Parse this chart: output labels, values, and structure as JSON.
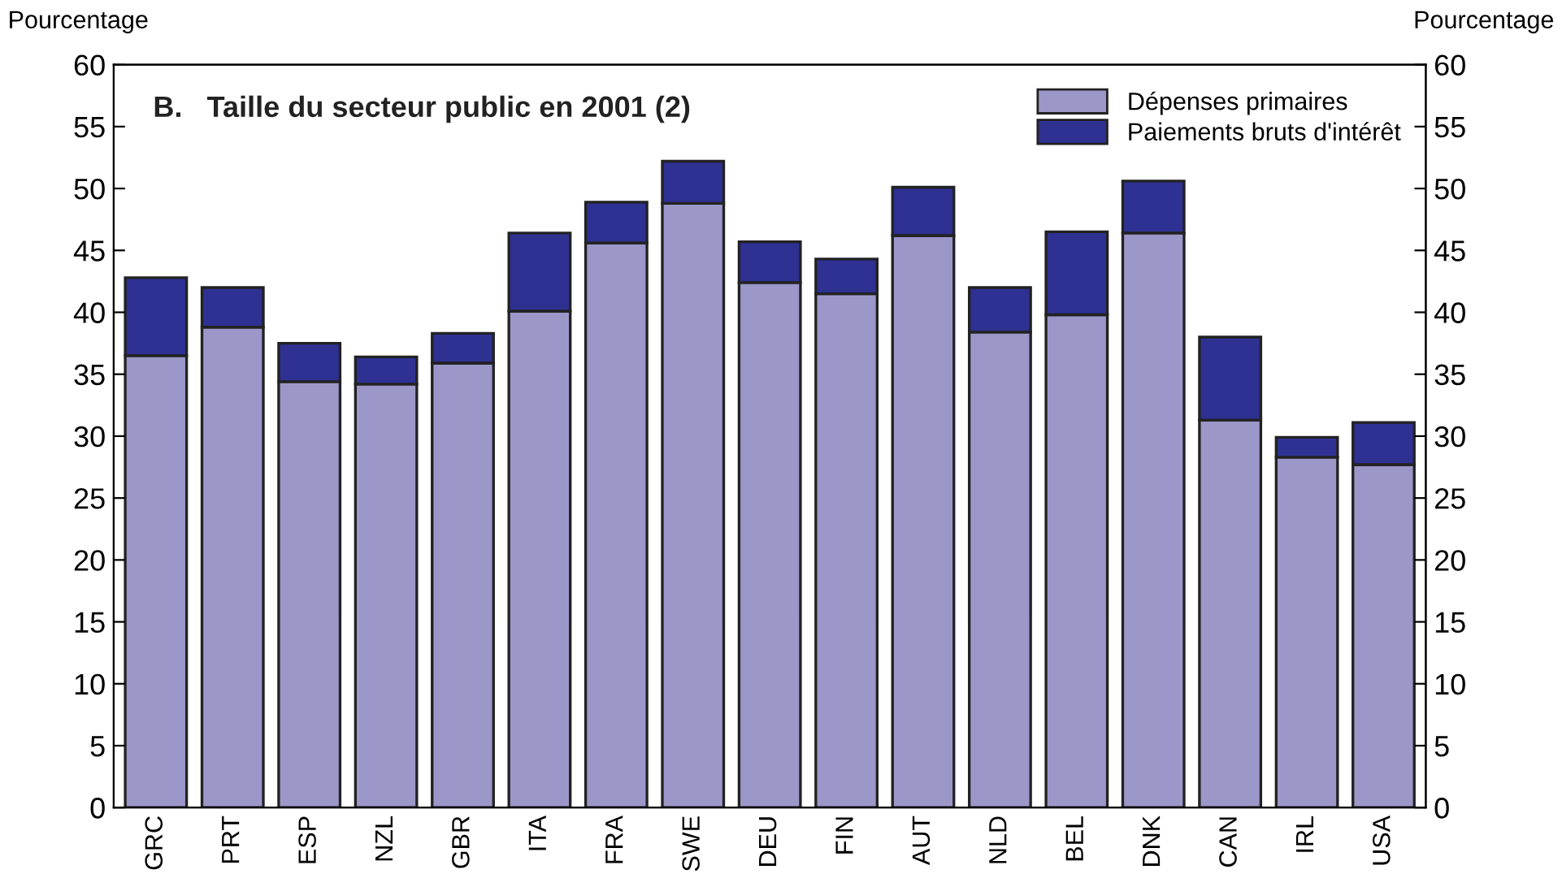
{
  "chart_data": {
    "type": "bar",
    "stacked": true,
    "title": "B.   Taille du secteur public en 2001 (2)",
    "ylabel": "Pourcentage",
    "y2label": "Pourcentage",
    "categories": [
      "GRC",
      "PRT",
      "ESP",
      "NZL",
      "GBR",
      "ITA",
      "FRA",
      "SWE",
      "DEU",
      "FIN",
      "AUT",
      "NLD",
      "BEL",
      "DNK",
      "CAN",
      "IRL",
      "USA"
    ],
    "series": [
      {
        "name": "Dépenses primaires",
        "color": "#9b97c9",
        "values": [
          36.5,
          38.8,
          34.4,
          34.2,
          35.9,
          40.1,
          45.6,
          48.8,
          42.4,
          41.5,
          46.2,
          38.4,
          39.8,
          46.4,
          31.3,
          28.3,
          27.7
        ]
      },
      {
        "name": "Paiements bruts d'intérêt",
        "color": "#2e3192",
        "values": [
          6.3,
          3.2,
          3.1,
          2.2,
          2.4,
          6.3,
          3.3,
          3.4,
          3.3,
          2.8,
          3.9,
          3.6,
          6.7,
          4.2,
          6.7,
          1.6,
          3.4
        ]
      }
    ],
    "ylim": [
      0,
      60
    ],
    "yticks": [
      0,
      5,
      10,
      15,
      20,
      25,
      30,
      35,
      40,
      45,
      50,
      55,
      60
    ],
    "y2lim": [
      0,
      60
    ],
    "y2ticks": [
      0,
      5,
      10,
      15,
      20,
      25,
      30,
      35,
      40,
      45,
      50,
      55,
      60
    ],
    "grid": false,
    "legend": "top right"
  }
}
